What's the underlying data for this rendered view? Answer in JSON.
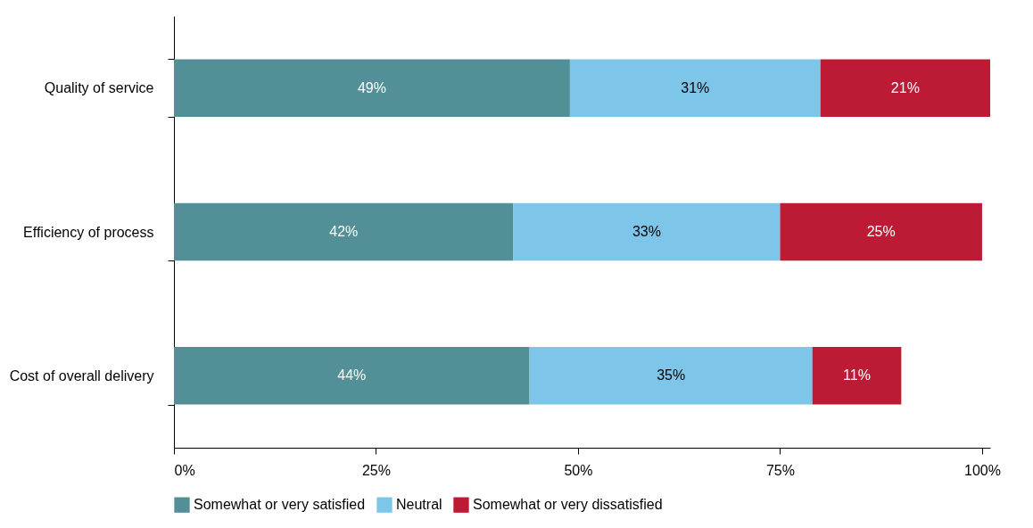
{
  "chart_data": {
    "type": "bar",
    "orientation": "horizontal",
    "stacked": true,
    "legend": "bottom",
    "categories": [
      "Quality of service",
      "Efficiency of process",
      "Cost of overall delivery"
    ],
    "xlim": [
      0,
      101
    ],
    "xticks": [
      {
        "value": 0,
        "label": "0%"
      },
      {
        "value": 25,
        "label": "25%"
      },
      {
        "value": 50,
        "label": "50%"
      },
      {
        "value": 75,
        "label": "75%"
      },
      {
        "value": 100,
        "label": "100%"
      }
    ],
    "series": [
      {
        "name": "Somewhat or very satisfied",
        "color": "#528f96",
        "values": [
          49,
          42,
          44
        ],
        "value_labels": [
          "49%",
          "42%",
          "44%"
        ]
      },
      {
        "name": "Neutral",
        "color": "#7ec5ea",
        "values": [
          31,
          33,
          35
        ],
        "value_labels": [
          "31%",
          "33%",
          "35%"
        ]
      },
      {
        "name": "Somewhat or very dissatisfied",
        "color": "#bd1a36",
        "values": [
          21,
          25,
          11
        ],
        "value_labels": [
          "21%",
          "25%",
          "11%"
        ]
      }
    ]
  }
}
